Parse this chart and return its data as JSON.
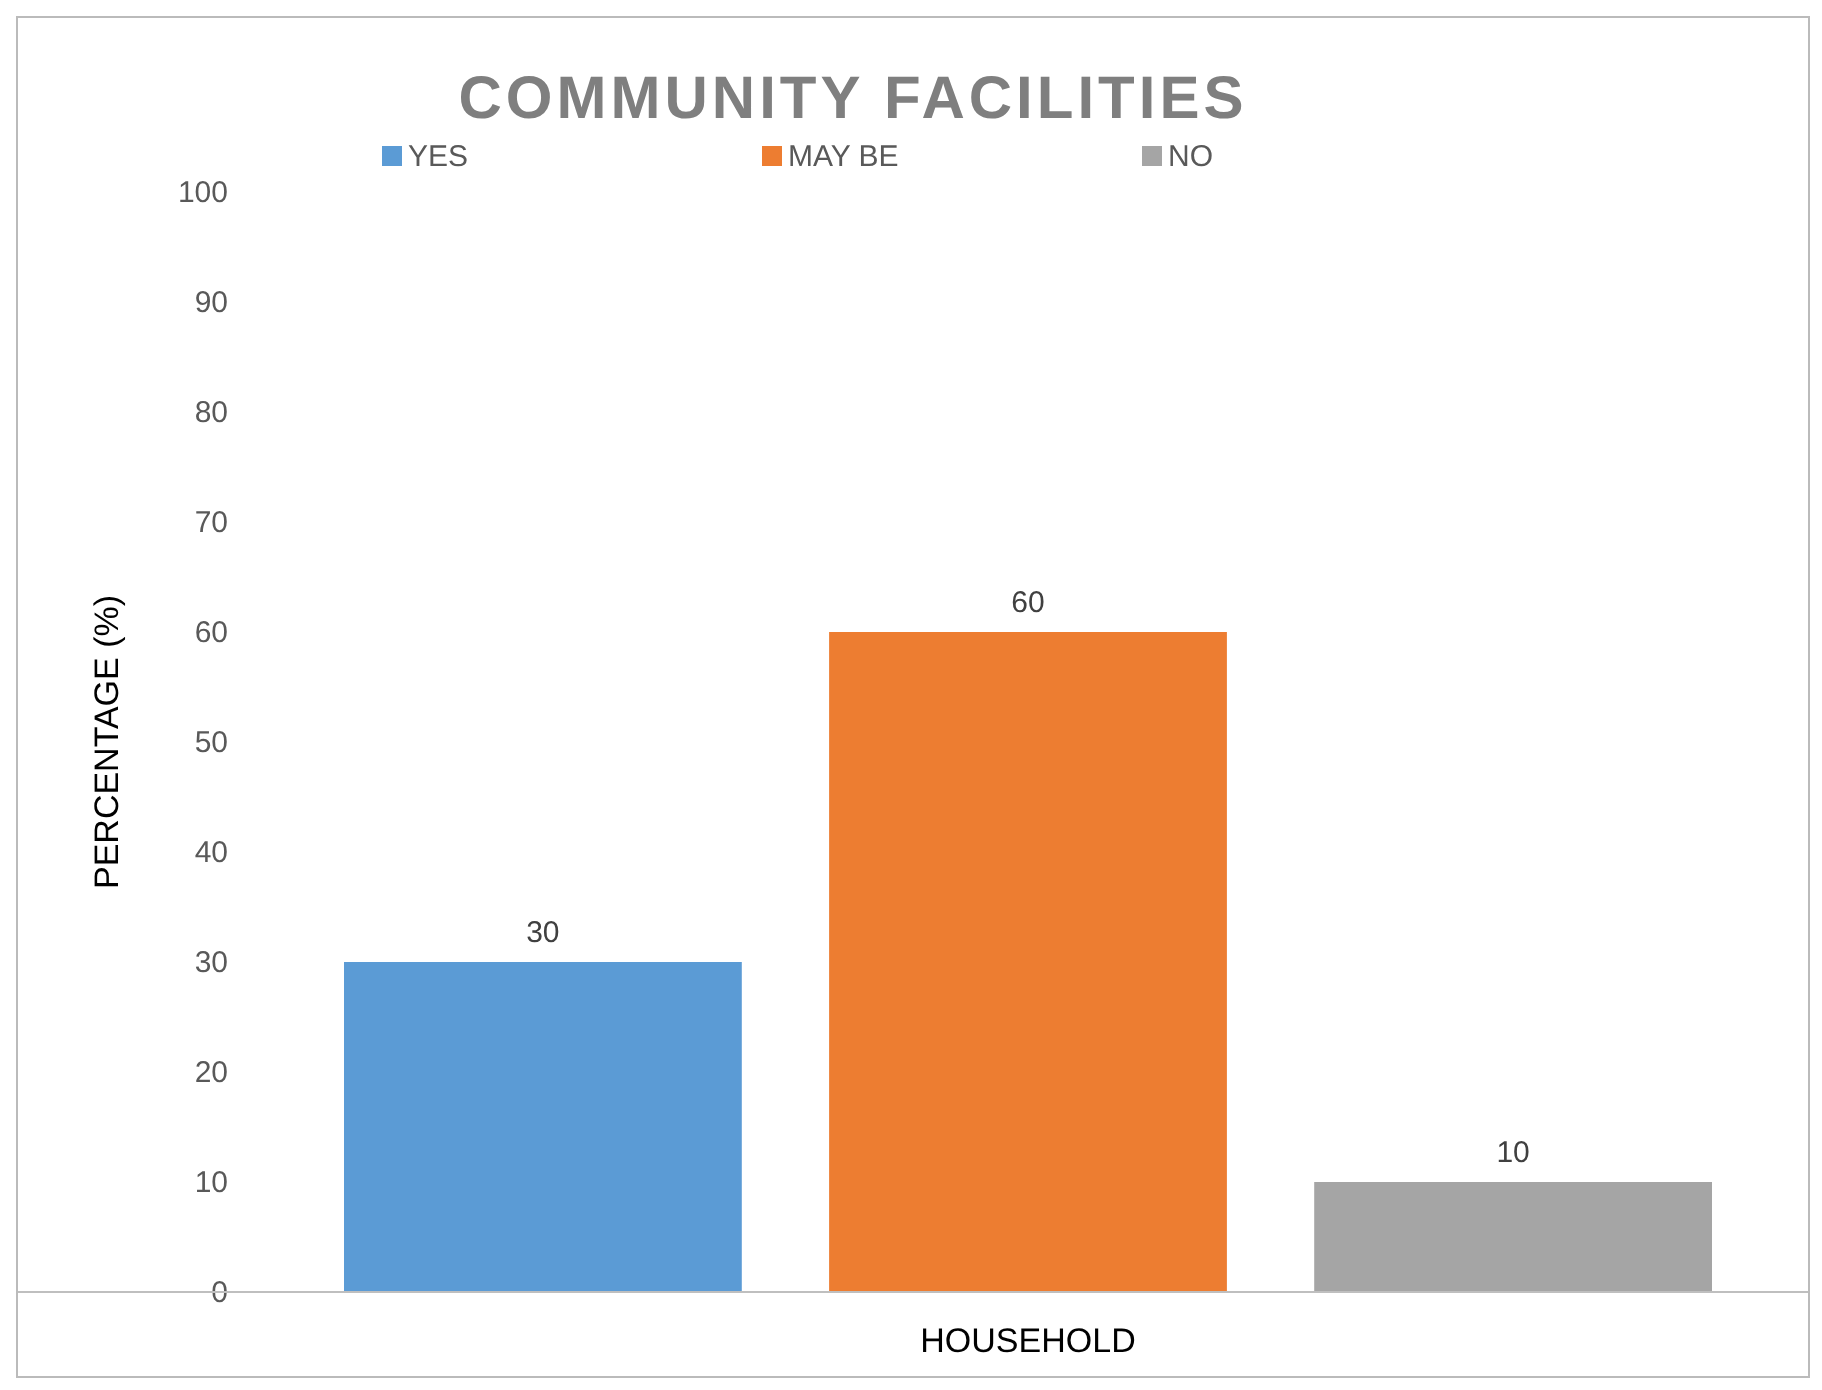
{
  "chart_data": {
    "type": "bar",
    "title": "COMMUNITY FACILITIES",
    "ylabel": "PERCENTAGE (%)",
    "categories": [
      "HOUSEHOLD"
    ],
    "series": [
      {
        "name": "YES",
        "color": "#5b9bd5",
        "values": [
          30
        ]
      },
      {
        "name": "MAY BE",
        "color": "#ed7d31",
        "values": [
          60
        ]
      },
      {
        "name": "NO",
        "color": "#a5a5a5",
        "values": [
          10
        ]
      }
    ],
    "ylim": [
      0,
      100
    ],
    "yticks": [
      0,
      10,
      20,
      30,
      40,
      50,
      60,
      70,
      80,
      90,
      100
    ],
    "grid": false,
    "legend": "top",
    "data_labels": true
  }
}
